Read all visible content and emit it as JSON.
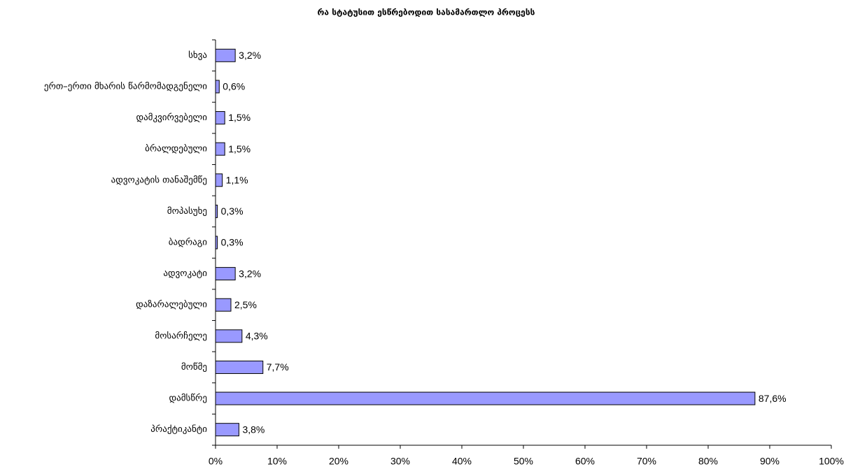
{
  "chart_data": {
    "type": "bar",
    "orientation": "horizontal",
    "title": "რა სტატუსით ესწრებოდით სასამართლო პროცესს",
    "categories": [
      "სხვა",
      "ერთ–ერთი მხარის წარმომადგენელი",
      "დამკვირვებელი",
      "ბრალდებული",
      "ადვოკატის თანაშემწე",
      "მოპასუხე",
      "ბადრაგი",
      "ადვოკატი",
      "დაზარალებული",
      "მოსარჩელე",
      "მოწმე",
      "დამსწრე",
      "პრაქტიკანტი"
    ],
    "values": [
      3.2,
      0.6,
      1.5,
      1.5,
      1.1,
      0.3,
      0.3,
      3.2,
      2.5,
      4.3,
      7.7,
      87.6,
      3.8
    ],
    "value_labels": [
      "3,2%",
      "0,6%",
      "1,5%",
      "1,5%",
      "1,1%",
      "0,3%",
      "0,3%",
      "3,2%",
      "2,5%",
      "4,3%",
      "7,7%",
      "87,6%",
      "3,8%"
    ],
    "color": "#9999ff",
    "xlim": [
      0,
      100
    ],
    "xticks": [
      {
        "value": 0,
        "label": "0%"
      },
      {
        "value": 10,
        "label": "10%"
      },
      {
        "value": 20,
        "label": "20%"
      },
      {
        "value": 30,
        "label": "30%"
      },
      {
        "value": 40,
        "label": "40%"
      },
      {
        "value": 50,
        "label": "50%"
      },
      {
        "value": 60,
        "label": "60%"
      },
      {
        "value": 70,
        "label": "70%"
      },
      {
        "value": 80,
        "label": "80%"
      },
      {
        "value": 90,
        "label": "90%"
      },
      {
        "value": 100,
        "label": "100%"
      }
    ]
  }
}
